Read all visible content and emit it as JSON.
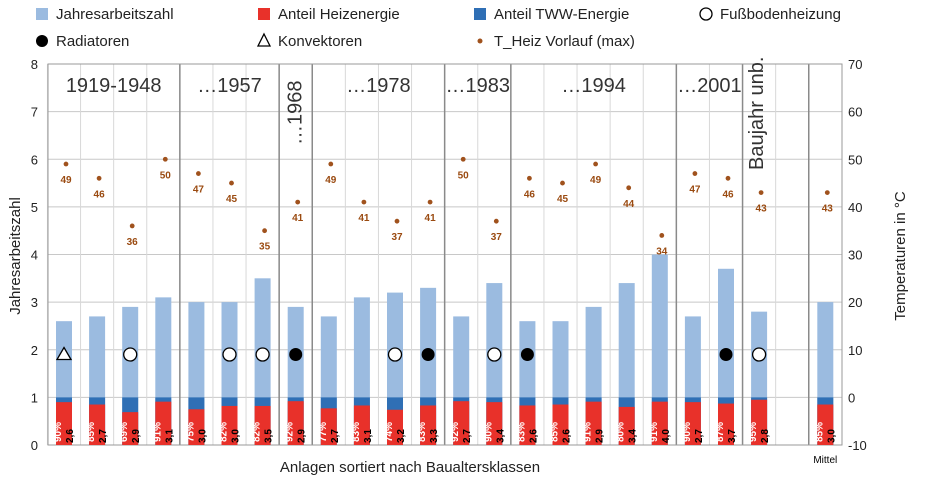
{
  "chart_data": {
    "type": "bar",
    "xlabel": "Anlagen sortiert nach Baualtersklassen",
    "ylabel": "Jahresarbeitszahl",
    "y2label": "Temperaturen in °C",
    "ylim": [
      0,
      8
    ],
    "y2lim": [
      -10,
      70
    ],
    "yticks": [
      "0",
      "1",
      "2",
      "3",
      "4",
      "5",
      "6",
      "7",
      "8"
    ],
    "y2ticks": [
      "-10",
      "0",
      "10",
      "20",
      "30",
      "40",
      "50",
      "60",
      "70"
    ],
    "grid": true,
    "legend_position": "top",
    "legend": [
      {
        "key": "jaz",
        "label": "Jahresarbeitszahl",
        "marker": "square",
        "color": "#9bbbe0"
      },
      {
        "key": "heiz",
        "label": "Anteil Heizenergie",
        "marker": "square",
        "color": "#e8312a"
      },
      {
        "key": "tww",
        "label": "Anteil TWW-Energie",
        "marker": "square",
        "color": "#2f6fb5"
      },
      {
        "key": "fbh",
        "label": "Fußbodenheizung",
        "marker": "circle-open",
        "color": "#000000"
      },
      {
        "key": "rad",
        "label": "Radiatoren",
        "marker": "circle-filled",
        "color": "#000000"
      },
      {
        "key": "konv",
        "label": "Konvektoren",
        "marker": "triangle-open",
        "color": "#000000"
      },
      {
        "key": "temp",
        "label": "T_Heiz Vorlauf (max)",
        "marker": "dot",
        "color": "#a0521d"
      }
    ],
    "groups": [
      {
        "label": "1919-1948",
        "rotated": false
      },
      {
        "label": "…1957",
        "rotated": false
      },
      {
        "label": "…1968",
        "rotated": true
      },
      {
        "label": "…1978",
        "rotated": false
      },
      {
        "label": "…1983",
        "rotated": false
      },
      {
        "label": "…1994",
        "rotated": false
      },
      {
        "label": "…2001",
        "rotated": false
      },
      {
        "label": "Baujahr unb.",
        "rotated": true
      }
    ],
    "mean_label": "Mittel",
    "bars": [
      {
        "jaz": 2.6,
        "jaz_label": "2,6",
        "heiz": 0.9,
        "heiz_label": "90%",
        "temp": 49,
        "temp_label": "49",
        "type": "Konvektoren"
      },
      {
        "jaz": 2.7,
        "jaz_label": "2,7",
        "heiz": 0.85,
        "heiz_label": "85%",
        "temp": 46,
        "temp_label": "46",
        "type": ""
      },
      {
        "jaz": 2.9,
        "jaz_label": "2,9",
        "heiz": 0.69,
        "heiz_label": "69%",
        "temp": 36,
        "temp_label": "36",
        "type": "Fußbodenheizung"
      },
      {
        "jaz": 3.1,
        "jaz_label": "3,1",
        "heiz": 0.91,
        "heiz_label": "91%",
        "temp": 50,
        "temp_label": "50",
        "type": ""
      },
      {
        "jaz": 3.0,
        "jaz_label": "3,0",
        "heiz": 0.75,
        "heiz_label": "75%",
        "temp": 47,
        "temp_label": "47",
        "type": ""
      },
      {
        "jaz": 3.0,
        "jaz_label": "3,0",
        "heiz": 0.82,
        "heiz_label": "82%",
        "temp": 45,
        "temp_label": "45",
        "type": "Fußbodenheizung"
      },
      {
        "jaz": 3.5,
        "jaz_label": "3,5",
        "heiz": 0.82,
        "heiz_label": "82%",
        "temp": 35,
        "temp_label": "35",
        "type": "Fußbodenheizung"
      },
      {
        "jaz": 2.9,
        "jaz_label": "2,9",
        "heiz": 0.92,
        "heiz_label": "92%",
        "temp": 41,
        "temp_label": "41",
        "type": "Radiatoren"
      },
      {
        "jaz": 2.7,
        "jaz_label": "2,7",
        "heiz": 0.77,
        "heiz_label": "77%",
        "temp": 49,
        "temp_label": "49",
        "type": ""
      },
      {
        "jaz": 3.1,
        "jaz_label": "3,1",
        "heiz": 0.83,
        "heiz_label": "83%",
        "temp": 41,
        "temp_label": "41",
        "type": ""
      },
      {
        "jaz": 3.2,
        "jaz_label": "3,2",
        "heiz": 0.74,
        "heiz_label": "74%",
        "temp": 37,
        "temp_label": "37",
        "type": "Fußbodenheizung"
      },
      {
        "jaz": 3.3,
        "jaz_label": "3,3",
        "heiz": 0.83,
        "heiz_label": "83%",
        "temp": 41,
        "temp_label": "41",
        "type": "Radiatoren"
      },
      {
        "jaz": 2.7,
        "jaz_label": "2,7",
        "heiz": 0.92,
        "heiz_label": "92%",
        "temp": 50,
        "temp_label": "50",
        "type": ""
      },
      {
        "jaz": 3.4,
        "jaz_label": "3,4",
        "heiz": 0.9,
        "heiz_label": "90%",
        "temp": 37,
        "temp_label": "37",
        "type": "Fußbodenheizung"
      },
      {
        "jaz": 2.6,
        "jaz_label": "2,6",
        "heiz": 0.83,
        "heiz_label": "83%",
        "temp": 46,
        "temp_label": "46",
        "type": "Radiatoren"
      },
      {
        "jaz": 2.6,
        "jaz_label": "2,6",
        "heiz": 0.85,
        "heiz_label": "85%",
        "temp": 45,
        "temp_label": "45",
        "type": ""
      },
      {
        "jaz": 2.9,
        "jaz_label": "2,9",
        "heiz": 0.91,
        "heiz_label": "91%",
        "temp": 49,
        "temp_label": "49",
        "type": ""
      },
      {
        "jaz": 3.4,
        "jaz_label": "3,4",
        "heiz": 0.8,
        "heiz_label": "80%",
        "temp": 44,
        "temp_label": "44",
        "type": ""
      },
      {
        "jaz": 4.0,
        "jaz_label": "4,0",
        "heiz": 0.91,
        "heiz_label": "91%",
        "temp": 34,
        "temp_label": "34",
        "type": ""
      },
      {
        "jaz": 2.7,
        "jaz_label": "2,7",
        "heiz": 0.9,
        "heiz_label": "90%",
        "temp": 47,
        "temp_label": "47",
        "type": ""
      },
      {
        "jaz": 3.7,
        "jaz_label": "3,7",
        "heiz": 0.87,
        "heiz_label": "87%",
        "temp": 46,
        "temp_label": "46",
        "type": "Radiatoren"
      },
      {
        "jaz": 2.8,
        "jaz_label": "2,8",
        "heiz": 0.95,
        "heiz_label": "95%",
        "temp": 43,
        "temp_label": "43",
        "type": "Fußbodenheizung"
      },
      {
        "jaz": 3.0,
        "jaz_label": "3,0",
        "heiz": 0.85,
        "heiz_label": "85%",
        "temp": 43,
        "temp_label": "43",
        "type": ""
      }
    ]
  }
}
